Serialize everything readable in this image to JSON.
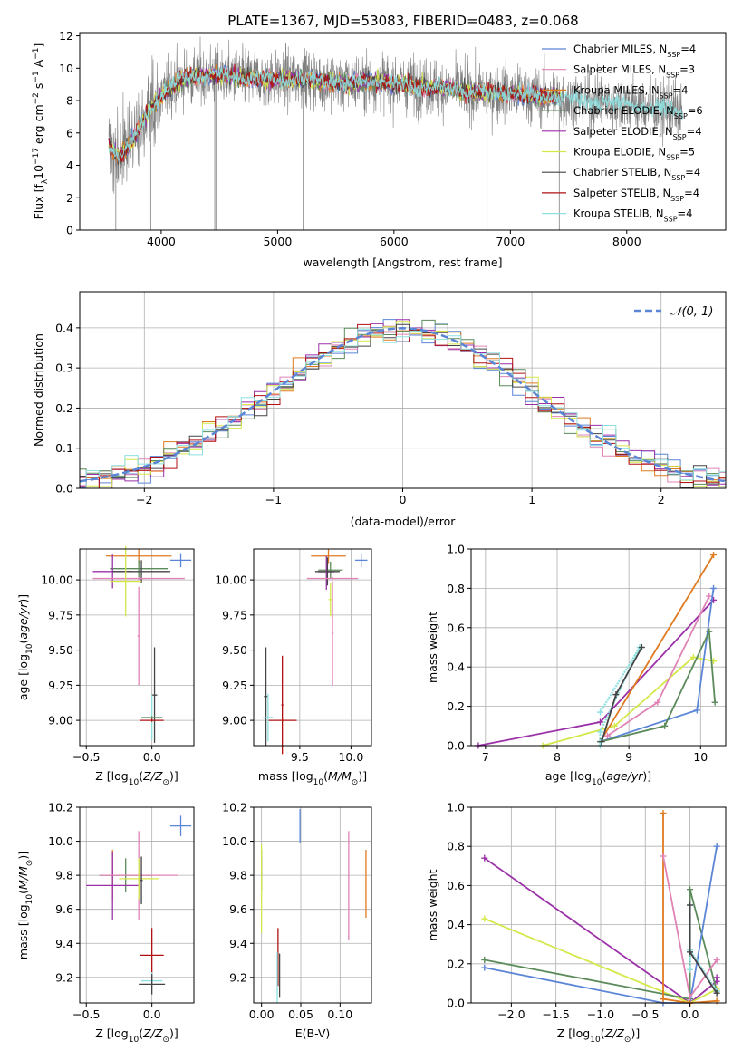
{
  "title": "PLATE=1367, MJD=53083, FIBERID=0483, z=0.068",
  "colors": {
    "Chabrier MILES": "#5b85d6",
    "Salpeter MILES": "#e083b5",
    "Kroupa MILES": "#e07a20",
    "Chabrier ELODIE": "#5b8a5b",
    "Salpeter ELODIE": "#9b30a8",
    "Kroupa ELODIE": "#d4e84a",
    "Chabrier STELIB": "#444444",
    "Salpeter STELIB": "#b01010",
    "Kroupa STELIB": "#8ee0e0",
    "spectrum": "#808080",
    "grid": "#b0b0b0"
  },
  "chart_data": [
    {
      "type": "line",
      "panel": "spectrum",
      "xlabel": "wavelength [Angstrom, rest frame]",
      "ylabel": "Flux [f_λ 10^-17 erg cm^-2 s^-1 A^-1]",
      "xlim": [
        3300,
        8850
      ],
      "ylim": [
        0,
        12.2
      ],
      "xticks": [
        "4000",
        "5000",
        "6000",
        "7000",
        "8000"
      ],
      "yticks": [
        "0",
        "2",
        "4",
        "6",
        "8",
        "10",
        "12"
      ],
      "grid": false,
      "legend_position": "top-right",
      "legend": [
        {
          "name": "Chabrier MILES",
          "label": "Chabrier MILES, N",
          "sub": "SSP",
          "tail": "=4"
        },
        {
          "name": "Salpeter MILES",
          "label": "Salpeter MILES, N",
          "sub": "SSP",
          "tail": "=3"
        },
        {
          "name": "Kroupa MILES",
          "label": "Kroupa MILES, N",
          "sub": "SSP",
          "tail": "=4"
        },
        {
          "name": "Chabrier ELODIE",
          "label": "Chabrier ELODIE, N",
          "sub": "SSP",
          "tail": "=6"
        },
        {
          "name": "Salpeter ELODIE",
          "label": "Salpeter ELODIE, N",
          "sub": "SSP",
          "tail": "=4"
        },
        {
          "name": "Kroupa ELODIE",
          "label": "Kroupa ELODIE, N",
          "sub": "SSP",
          "tail": "=5"
        },
        {
          "name": "Chabrier STELIB",
          "label": "Chabrier STELIB, N",
          "sub": "SSP",
          "tail": "=4"
        },
        {
          "name": "Salpeter STELIB",
          "label": "Salpeter STELIB, N",
          "sub": "SSP",
          "tail": "=4"
        },
        {
          "name": "Kroupa STELIB",
          "label": "Kroupa STELIB, N",
          "sub": "SSP",
          "tail": "=4"
        }
      ],
      "continuum": {
        "x": [
          3550,
          3620,
          3700,
          3800,
          3900,
          4000,
          4100,
          4200,
          4400,
          4600,
          4800,
          5000,
          5200,
          5400,
          5600,
          5800,
          6000,
          6200,
          6400,
          6600,
          6800,
          7000,
          7200,
          7400,
          7600,
          7800,
          8000,
          8200,
          8400,
          8480
        ],
        "y": [
          5.2,
          4.6,
          5.0,
          6.2,
          7.4,
          8.3,
          9.0,
          9.4,
          9.6,
          9.5,
          9.4,
          9.3,
          9.4,
          9.2,
          9.1,
          9.2,
          9.1,
          8.9,
          8.8,
          8.6,
          8.5,
          8.5,
          8.3,
          8.2,
          8.0,
          7.9,
          7.8,
          7.6,
          7.4,
          7.3
        ]
      },
      "spectrum_noise_sd": 1.1,
      "spectrum_glitches": [
        {
          "x": 3610,
          "y": 0.0
        },
        {
          "x": 3910,
          "y": 0.0
        },
        {
          "x": 4460,
          "y": 0.0
        },
        {
          "x": 5220,
          "y": 0.0
        },
        {
          "x": 6800,
          "y": 0.0
        },
        {
          "x": 7420,
          "y": 0.0
        },
        {
          "x": 4470,
          "y": 0.0
        }
      ],
      "model_x_range": [
        3550,
        7430
      ],
      "kroupa_stelib_x_range": [
        3550,
        8480
      ]
    },
    {
      "type": "line",
      "panel": "residual-histogram",
      "xlabel": "(data-model)/error",
      "ylabel": "Normed distribution",
      "xlim": [
        -2.5,
        2.5
      ],
      "ylim": [
        0,
        0.49
      ],
      "xticks": [
        -2,
        -1,
        0,
        1,
        2
      ],
      "xtick_labels": [
        "−2",
        "−1",
        "0",
        "1",
        "2"
      ],
      "yticks": [
        0.0,
        0.1,
        0.2,
        0.3,
        0.4
      ],
      "grid": true,
      "bin_width": 0.1,
      "gaussian": {
        "name": "N(0,1)",
        "label": "𝒩(0, 1)",
        "mean": 0,
        "sd": 1,
        "style": "dashed"
      },
      "legend_position": "top-right"
    },
    {
      "type": "scatter",
      "panel": "age-vs-Z",
      "xlabel": "Z [log10(Z/Z⊙)]",
      "ylabel": "age [log10(age/yr)]",
      "xlim": [
        -0.55,
        0.32
      ],
      "ylim": [
        8.82,
        10.22
      ],
      "xticks": [
        -0.5,
        0.0
      ],
      "xtick_labels": [
        "−0.5",
        "0.0"
      ],
      "yticks": [
        9.0,
        9.25,
        9.5,
        9.75,
        10.0
      ],
      "ytick_labels": [
        "9.00",
        "9.25",
        "9.50",
        "9.75",
        "10.00"
      ],
      "grid": true,
      "points": [
        {
          "model": "Chabrier MILES",
          "x": 0.22,
          "xe": 0.08,
          "y": 10.14,
          "ye": 0.05
        },
        {
          "model": "Kroupa MILES",
          "x": -0.1,
          "xe": 0.25,
          "y": 10.17,
          "ye": 0.05
        },
        {
          "model": "Chabrier ELODIE",
          "x": -0.1,
          "xe": 0.22,
          "y": 10.08,
          "ye": 0.06
        },
        {
          "model": "Salpeter ELODIE",
          "x": -0.3,
          "xe": 0.15,
          "y": 10.06,
          "ye": 0.12
        },
        {
          "model": "Chabrier STELIB",
          "x": -0.08,
          "xe": 0.22,
          "y": 10.06,
          "ye": 0.08
        },
        {
          "model": "Salpeter MILES",
          "x": -0.1,
          "xe": 0.35,
          "y": 10.01,
          "ye": 0.01
        },
        {
          "model": "Salpeter MILES",
          "x": -0.1,
          "xe": 0.01,
          "y": 9.6,
          "ye": 0.35
        },
        {
          "model": "Kroupa ELODIE",
          "x": -0.2,
          "xe": 0.12,
          "y": 9.99,
          "ye": 0.25
        },
        {
          "model": "Chabrier STELIB",
          "x": 0.02,
          "xe": 0.02,
          "y": 9.18,
          "ye": 0.34
        },
        {
          "model": "Kroupa STELIB",
          "x": 0.0,
          "xe": 0.08,
          "y": 9.02,
          "ye": 0.16
        },
        {
          "model": "Chabrier ELODIE",
          "x": 0.0,
          "xe": 0.08,
          "y": 9.02,
          "ye": 0.01
        },
        {
          "model": "Salpeter STELIB",
          "x": 0.0,
          "xe": 0.09,
          "y": 9.0,
          "ye": 0.01
        }
      ]
    },
    {
      "type": "scatter",
      "panel": "age-vs-mass",
      "xlabel": "mass [log10(M/M⊙)]",
      "ylabel": "",
      "xlim": [
        9.05,
        10.2
      ],
      "ylim": [
        8.82,
        10.22
      ],
      "xticks": [
        9.5,
        10.0
      ],
      "xtick_labels": [
        "9.5",
        "10.0"
      ],
      "yticks": [
        9.0,
        9.25,
        9.5,
        9.75,
        10.0
      ],
      "ytick_labels": [
        "9.00",
        "9.25",
        "9.50",
        "9.75",
        "10.00"
      ],
      "grid": true,
      "points": [
        {
          "model": "Chabrier MILES",
          "x": 10.1,
          "xe": 0.06,
          "y": 10.14,
          "ye": 0.05
        },
        {
          "model": "Kroupa MILES",
          "x": 9.78,
          "xe": 0.17,
          "y": 10.17,
          "ye": 0.05
        },
        {
          "model": "Chabrier ELODIE",
          "x": 9.8,
          "xe": 0.12,
          "y": 10.07,
          "ye": 0.06
        },
        {
          "model": "Salpeter ELODIE",
          "x": 9.76,
          "xe": 0.08,
          "y": 10.05,
          "ye": 0.12
        },
        {
          "model": "Chabrier STELIB",
          "x": 9.77,
          "xe": 0.12,
          "y": 10.06,
          "ye": 0.1
        },
        {
          "model": "Salpeter MILES",
          "x": 9.82,
          "xe": 0.25,
          "y": 10.01,
          "ye": 0.01
        },
        {
          "model": "Salpeter MILES",
          "x": 9.82,
          "xe": 0.01,
          "y": 9.62,
          "ye": 0.37
        },
        {
          "model": "Kroupa ELODIE",
          "x": 9.8,
          "xe": 0.02,
          "y": 9.86,
          "ye": 0.12
        },
        {
          "model": "Salpeter STELIB",
          "x": 9.33,
          "xe": 0.14,
          "y": 9.0,
          "ye": 0.01
        },
        {
          "model": "Salpeter STELIB",
          "x": 9.33,
          "xe": 0.01,
          "y": 9.11,
          "ye": 0.35
        },
        {
          "model": "Chabrier STELIB",
          "x": 9.17,
          "xe": 0.02,
          "y": 9.17,
          "ye": 0.35
        },
        {
          "model": "Kroupa STELIB",
          "x": 9.19,
          "xe": 0.05,
          "y": 9.02,
          "ye": 0.17
        }
      ]
    },
    {
      "type": "line",
      "panel": "mass-weight-vs-age",
      "xlabel": "age [log10(age/yr)]",
      "ylabel": "mass weight",
      "xlim": [
        6.8,
        10.35
      ],
      "ylim": [
        0,
        1
      ],
      "xticks": [
        7,
        8,
        9,
        10
      ],
      "xtick_labels": [
        "7",
        "8",
        "9",
        "10"
      ],
      "yticks": [
        0.0,
        0.2,
        0.4,
        0.6,
        0.8,
        1.0
      ],
      "ytick_labels": [
        "0.0",
        "0.2",
        "0.4",
        "0.6",
        "0.8",
        "1.0"
      ],
      "grid": true,
      "series": [
        {
          "model": "Salpeter ELODIE",
          "x": [
            6.9,
            8.6,
            10.18
          ],
          "y": [
            0.0,
            0.12,
            0.74
          ]
        },
        {
          "model": "Kroupa ELODIE",
          "x": [
            7.8,
            8.8,
            9.9,
            10.18
          ],
          "y": [
            0.0,
            0.1,
            0.45,
            0.43
          ]
        },
        {
          "model": "Kroupa MILES",
          "x": [
            8.6,
            10.18
          ],
          "y": [
            0.02,
            0.97
          ]
        },
        {
          "model": "Salpeter MILES",
          "x": [
            8.7,
            9.4,
            10.12
          ],
          "y": [
            0.05,
            0.22,
            0.76
          ]
        },
        {
          "model": "Chabrier MILES",
          "x": [
            8.6,
            9.95,
            10.18
          ],
          "y": [
            0.02,
            0.18,
            0.8
          ]
        },
        {
          "model": "Chabrier ELODIE",
          "x": [
            8.6,
            9.5,
            10.12,
            10.2
          ],
          "y": [
            0.02,
            0.1,
            0.58,
            0.22
          ]
        },
        {
          "model": "Kroupa STELIB",
          "x": [
            8.6,
            9.15,
            8.6,
            8.6
          ],
          "y": [
            0.17,
            0.5,
            0.07,
            0.0
          ]
        },
        {
          "model": "Chabrier STELIB",
          "x": [
            8.62,
            8.82,
            9.18
          ],
          "y": [
            0.02,
            0.26,
            0.5
          ]
        }
      ]
    },
    {
      "type": "scatter",
      "panel": "mass-vs-Z",
      "xlabel": "Z [log10(Z/Z⊙)]",
      "ylabel": "mass [log10(M/M⊙)]",
      "xlim": [
        -0.55,
        0.32
      ],
      "ylim": [
        9.05,
        10.2
      ],
      "xticks": [
        -0.5,
        0.0
      ],
      "xtick_labels": [
        "−0.5",
        "0.0"
      ],
      "yticks": [
        9.2,
        9.4,
        9.6,
        9.8,
        10.0,
        10.2
      ],
      "ytick_labels": [
        "9.2",
        "9.4",
        "9.6",
        "9.8",
        "10.0",
        "10.2"
      ],
      "grid": true,
      "points": [
        {
          "model": "Chabrier MILES",
          "x": 0.22,
          "xe": 0.08,
          "y": 10.09,
          "ye": 0.06
        },
        {
          "model": "Kroupa MILES",
          "x": -0.3,
          "xe": 0.01,
          "y": 9.8,
          "ye": 0.15
        },
        {
          "model": "Chabrier ELODIE",
          "x": -0.2,
          "xe": 0.2,
          "y": 9.8,
          "ye": 0.1
        },
        {
          "model": "Salpeter ELODIE",
          "x": -0.3,
          "xe": 0.2,
          "y": 9.74,
          "ye": 0.2
        },
        {
          "model": "Salpeter MILES",
          "x": -0.1,
          "xe": 0.3,
          "y": 9.8,
          "ye": 0.26
        },
        {
          "model": "Kroupa ELODIE",
          "x": -0.1,
          "xe": 0.15,
          "y": 9.78,
          "ye": 0.12
        },
        {
          "model": "Chabrier STELIB",
          "x": -0.08,
          "xe": 0.01,
          "y": 9.77,
          "ye": 0.14
        },
        {
          "model": "Salpeter STELIB",
          "x": 0.0,
          "xe": 0.09,
          "y": 9.33,
          "ye": 0.16
        },
        {
          "model": "Kroupa STELIB",
          "x": 0.0,
          "xe": 0.08,
          "y": 9.18,
          "ye": 0.05
        },
        {
          "model": "Chabrier STELIB",
          "x": 0.0,
          "xe": 0.1,
          "y": 9.16,
          "ye": 0.06
        }
      ]
    },
    {
      "type": "scatter",
      "panel": "mass-vs-EBV",
      "xlabel": "E(B-V)",
      "ylabel": "",
      "xlim": [
        -0.01,
        0.14
      ],
      "ylim": [
        9.05,
        10.2
      ],
      "xticks": [
        0.0,
        0.05,
        0.1
      ],
      "xtick_labels": [
        "0.00",
        "0.05",
        "0.10"
      ],
      "yticks": [
        9.2,
        9.4,
        9.6,
        9.8,
        10.0,
        10.2
      ],
      "ytick_labels": [
        "9.2",
        "9.4",
        "9.6",
        "9.8",
        "10.0",
        "10.2"
      ],
      "grid": true,
      "points": [
        {
          "model": "Chabrier MILES",
          "x": 0.049,
          "xe": 0.0,
          "y": 10.09,
          "ye": 0.1
        },
        {
          "model": "Kroupa MILES",
          "x": 0.133,
          "xe": 0.0,
          "y": 9.75,
          "ye": 0.2
        },
        {
          "model": "Salpeter MILES",
          "x": 0.111,
          "xe": 0.0,
          "y": 9.74,
          "ye": 0.32
        },
        {
          "model": "Salpeter ELODIE",
          "x": 0.0,
          "xe": 0.0,
          "y": 9.85,
          "ye": 0.06
        },
        {
          "model": "Chabrier ELODIE",
          "x": 0.0,
          "xe": 0.0,
          "y": 9.83,
          "ye": 0.12
        },
        {
          "model": "Kroupa ELODIE",
          "x": 0.0,
          "xe": 0.0,
          "y": 9.72,
          "ye": 0.26
        },
        {
          "model": "Salpeter STELIB",
          "x": 0.021,
          "xe": 0.0,
          "y": 9.32,
          "ye": 0.17
        },
        {
          "model": "Kroupa STELIB",
          "x": 0.02,
          "xe": 0.0,
          "y": 9.2,
          "ye": 0.15
        },
        {
          "model": "Chabrier STELIB",
          "x": 0.023,
          "xe": 0.0,
          "y": 9.21,
          "ye": 0.13
        }
      ]
    },
    {
      "type": "line",
      "panel": "mass-weight-vs-Z",
      "xlabel": "Z [log10(Z/Z⊙)]",
      "ylabel": "mass weight",
      "xlim": [
        -2.45,
        0.4
      ],
      "ylim": [
        0,
        1
      ],
      "xticks": [
        -2.0,
        -1.5,
        -1.0,
        -0.5,
        0.0
      ],
      "xtick_labels": [
        "−2.0",
        "−1.5",
        "−1.0",
        "−0.5",
        "0.0"
      ],
      "yticks": [
        0.0,
        0.2,
        0.4,
        0.6,
        0.8,
        1.0
      ],
      "ytick_labels": [
        "0.0",
        "0.2",
        "0.4",
        "0.6",
        "0.8",
        "1.0"
      ],
      "grid": true,
      "series": [
        {
          "model": "Salpeter ELODIE",
          "x": [
            -2.3,
            0.0,
            0.3,
            0.3
          ],
          "y": [
            0.74,
            0.0,
            0.11,
            0.13
          ]
        },
        {
          "model": "Kroupa ELODIE",
          "x": [
            -2.3,
            0.0,
            0.3
          ],
          "y": [
            0.43,
            0.0,
            0.07
          ]
        },
        {
          "model": "Chabrier ELODIE",
          "x": [
            -2.3,
            0.0,
            0.0,
            0.3
          ],
          "y": [
            0.22,
            0.02,
            0.58,
            0.06
          ]
        },
        {
          "model": "Chabrier MILES",
          "x": [
            -2.3,
            -0.3,
            0.0,
            0.3
          ],
          "y": [
            0.18,
            0.0,
            0.0,
            0.8
          ]
        },
        {
          "model": "Kroupa MILES",
          "x": [
            -0.3,
            -0.3,
            0.0,
            0.3
          ],
          "y": [
            0.97,
            0.02,
            0.0,
            0.01
          ]
        },
        {
          "model": "Salpeter MILES",
          "x": [
            -0.3,
            0.0,
            0.3
          ],
          "y": [
            0.75,
            0.03,
            0.22
          ]
        },
        {
          "model": "Kroupa STELIB",
          "x": [
            0.0,
            0.0,
            0.0,
            0.3
          ],
          "y": [
            0.5,
            0.17,
            0.27,
            0.06
          ]
        },
        {
          "model": "Chabrier STELIB",
          "x": [
            0.0,
            0.0,
            0.3
          ],
          "y": [
            0.5,
            0.26,
            0.05
          ]
        }
      ]
    }
  ]
}
